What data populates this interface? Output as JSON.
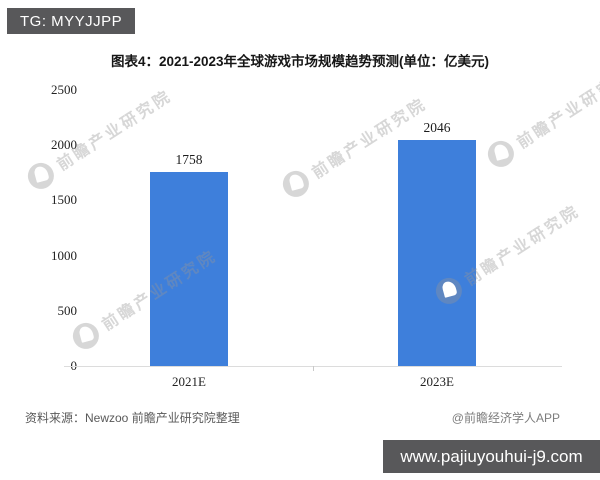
{
  "header": {
    "badge": "TG: MYYJJPP"
  },
  "chart_data": {
    "type": "bar",
    "title": "图表4：2021-2023年全球游戏市场规模趋势预测(单位：亿美元)",
    "categories": [
      "2021E",
      "2023E"
    ],
    "values": [
      1758,
      2046
    ],
    "xlabel": "",
    "ylabel": "",
    "ylim": [
      0,
      2500
    ],
    "yticks": [
      0,
      500,
      1000,
      1500,
      2000,
      2500
    ],
    "grid": false,
    "legend": false,
    "bar_color": "#3e7fdb",
    "data_labels_shown": true
  },
  "watermark": {
    "text": "前瞻产业研究院"
  },
  "source_row": {
    "source": "资料来源：Newzoo 前瞻产业研究院整理",
    "credit": "@前瞻经济学人APP"
  },
  "footer": {
    "url": "www.pajiuyouhui-j9.com"
  },
  "colors": {
    "bar": "#3e7fdb",
    "badge_background": "#58585a",
    "axis_line": "#dcdcdc",
    "watermark_gray": "#969696"
  }
}
